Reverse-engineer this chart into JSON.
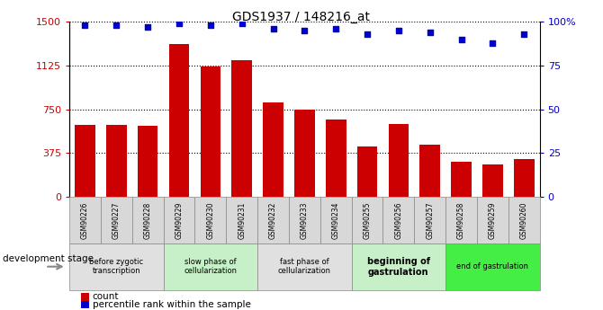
{
  "title": "GDS1937 / 148216_at",
  "samples": [
    "GSM90226",
    "GSM90227",
    "GSM90228",
    "GSM90229",
    "GSM90230",
    "GSM90231",
    "GSM90232",
    "GSM90233",
    "GSM90234",
    "GSM90255",
    "GSM90256",
    "GSM90257",
    "GSM90258",
    "GSM90259",
    "GSM90260"
  ],
  "counts": [
    620,
    615,
    605,
    1310,
    1115,
    1170,
    810,
    750,
    660,
    430,
    625,
    450,
    300,
    280,
    325
  ],
  "percentile_vals": [
    98,
    98,
    97,
    99,
    98,
    99,
    96,
    95,
    96,
    93,
    95,
    94,
    90,
    88,
    93
  ],
  "ylim_left": [
    0,
    1500
  ],
  "ylim_right": [
    0,
    100
  ],
  "yticks_left": [
    0,
    375,
    750,
    1125,
    1500
  ],
  "yticks_right": [
    0,
    25,
    50,
    75,
    100
  ],
  "bar_color": "#cc0000",
  "dot_color": "#0000cc",
  "stage_groups": [
    {
      "label": "before zygotic\ntranscription",
      "start": 0,
      "end": 3,
      "color": "#e0e0e0",
      "bold": false
    },
    {
      "label": "slow phase of\ncellularization",
      "start": 3,
      "end": 6,
      "color": "#c8f0c8",
      "bold": false
    },
    {
      "label": "fast phase of\ncellularization",
      "start": 6,
      "end": 9,
      "color": "#e0e0e0",
      "bold": false
    },
    {
      "label": "beginning of\ngastrulation",
      "start": 9,
      "end": 12,
      "color": "#c8f0c8",
      "bold": true
    },
    {
      "label": "end of gastrulation",
      "start": 12,
      "end": 15,
      "color": "#44ee44",
      "bold": false
    }
  ],
  "legend_count_label": "count",
  "legend_pct_label": "percentile rank within the sample",
  "dev_stage_label": "development stage",
  "bar_width": 0.65,
  "n_samples": 15
}
